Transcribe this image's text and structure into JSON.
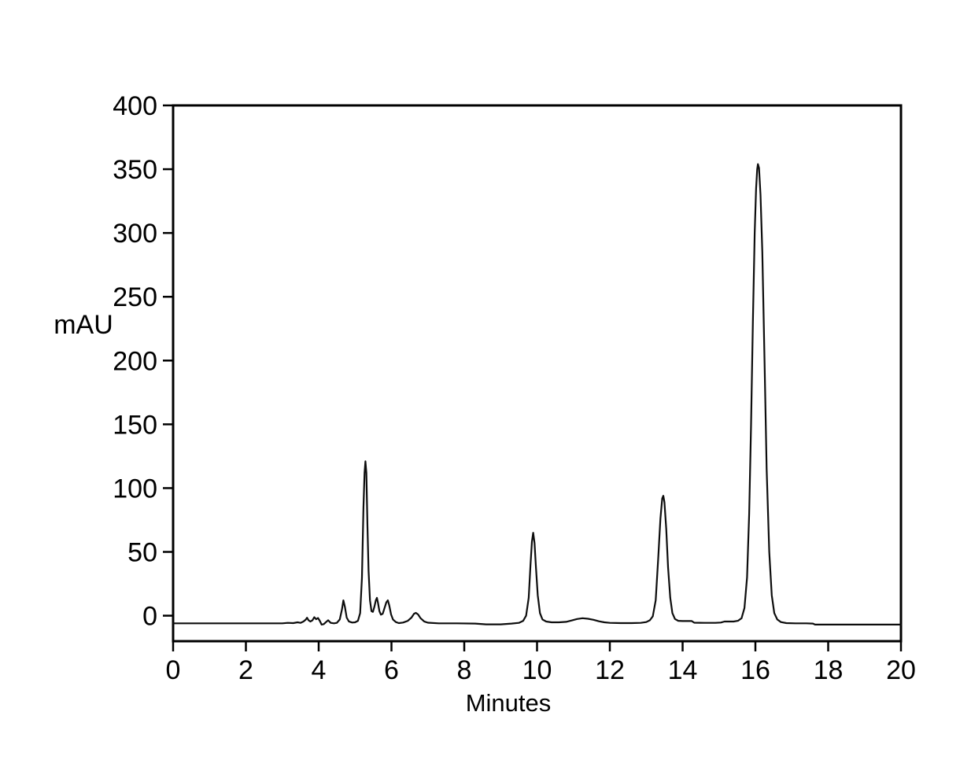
{
  "figure": {
    "background": "#ffffff",
    "axis_color": "#000000",
    "trace_color": "#0d0d0d"
  },
  "chart_data": {
    "type": "line",
    "title": "",
    "xlabel": "Minutes",
    "ylabel": "mAU",
    "xlim": [
      0,
      20
    ],
    "ylim": [
      -20,
      400
    ],
    "x_ticks": [
      0,
      2,
      4,
      6,
      8,
      10,
      12,
      14,
      16,
      18,
      20
    ],
    "y_ticks": [
      0,
      50,
      100,
      150,
      200,
      250,
      300,
      350,
      400
    ],
    "grid": false,
    "legend": "none",
    "peaks": [
      {
        "t": 3.68,
        "mAU": -1.5
      },
      {
        "t": 3.9,
        "mAU": -1.0
      },
      {
        "t": 4.68,
        "mAU": 12
      },
      {
        "t": 5.29,
        "mAU": 121
      },
      {
        "t": 5.6,
        "mAU": 14
      },
      {
        "t": 5.9,
        "mAU": 12
      },
      {
        "t": 6.65,
        "mAU": 2.2
      },
      {
        "t": 9.9,
        "mAU": 65
      },
      {
        "t": 11.3,
        "mAU": -1.5
      },
      {
        "t": 13.47,
        "mAU": 94
      },
      {
        "t": 16.08,
        "mAU": 354
      }
    ],
    "series": [
      {
        "name": "chromatogram-signal",
        "color": "#0d0d0d",
        "points": [
          [
            0,
            -6
          ],
          [
            0.8,
            -6
          ],
          [
            1.6,
            -6
          ],
          [
            2.4,
            -6
          ],
          [
            3.0,
            -6
          ],
          [
            3.15,
            -5.6
          ],
          [
            3.3,
            -5.8
          ],
          [
            3.42,
            -5.2
          ],
          [
            3.5,
            -5.6
          ],
          [
            3.58,
            -4.6
          ],
          [
            3.64,
            -3.2
          ],
          [
            3.68,
            -1.6
          ],
          [
            3.72,
            -3.6
          ],
          [
            3.77,
            -4.6
          ],
          [
            3.83,
            -3.6
          ],
          [
            3.88,
            -1.2
          ],
          [
            3.93,
            -2.8
          ],
          [
            3.98,
            -1.8
          ],
          [
            4.03,
            -4
          ],
          [
            4.08,
            -7
          ],
          [
            4.14,
            -6.6
          ],
          [
            4.2,
            -5
          ],
          [
            4.26,
            -3.6
          ],
          [
            4.33,
            -5.6
          ],
          [
            4.42,
            -6
          ],
          [
            4.5,
            -5.6
          ],
          [
            4.58,
            -3
          ],
          [
            4.64,
            5
          ],
          [
            4.68,
            12
          ],
          [
            4.72,
            7
          ],
          [
            4.77,
            -1.5
          ],
          [
            4.83,
            -4.5
          ],
          [
            4.92,
            -5.4
          ],
          [
            5.0,
            -5.2
          ],
          [
            5.08,
            -4
          ],
          [
            5.14,
            2
          ],
          [
            5.19,
            30
          ],
          [
            5.23,
            85
          ],
          [
            5.26,
            112
          ],
          [
            5.285,
            121
          ],
          [
            5.31,
            112
          ],
          [
            5.34,
            70
          ],
          [
            5.37,
            35
          ],
          [
            5.41,
            12
          ],
          [
            5.45,
            3.5
          ],
          [
            5.49,
            3
          ],
          [
            5.53,
            7
          ],
          [
            5.57,
            12
          ],
          [
            5.6,
            14
          ],
          [
            5.63,
            10
          ],
          [
            5.67,
            3.5
          ],
          [
            5.71,
            0.8
          ],
          [
            5.76,
            1.5
          ],
          [
            5.81,
            6
          ],
          [
            5.86,
            10.5
          ],
          [
            5.9,
            12
          ],
          [
            5.94,
            8
          ],
          [
            5.99,
            1
          ],
          [
            6.04,
            -3
          ],
          [
            6.12,
            -5
          ],
          [
            6.2,
            -5.8
          ],
          [
            6.32,
            -5.4
          ],
          [
            6.45,
            -4
          ],
          [
            6.55,
            -1.5
          ],
          [
            6.62,
            1.5
          ],
          [
            6.67,
            2.2
          ],
          [
            6.73,
            1
          ],
          [
            6.8,
            -2
          ],
          [
            6.9,
            -4.5
          ],
          [
            7.0,
            -5.5
          ],
          [
            7.3,
            -6
          ],
          [
            7.8,
            -6
          ],
          [
            8.3,
            -6.2
          ],
          [
            8.6,
            -6.8
          ],
          [
            9.0,
            -6.8
          ],
          [
            9.3,
            -6.2
          ],
          [
            9.5,
            -5.6
          ],
          [
            9.62,
            -4
          ],
          [
            9.7,
            0
          ],
          [
            9.77,
            14
          ],
          [
            9.82,
            40
          ],
          [
            9.86,
            58
          ],
          [
            9.895,
            65
          ],
          [
            9.93,
            57
          ],
          [
            9.97,
            38
          ],
          [
            10.02,
            16
          ],
          [
            10.08,
            2
          ],
          [
            10.15,
            -3
          ],
          [
            10.25,
            -4.6
          ],
          [
            10.4,
            -5.2
          ],
          [
            10.6,
            -5.2
          ],
          [
            10.8,
            -4.8
          ],
          [
            10.95,
            -3.8
          ],
          [
            11.1,
            -2.6
          ],
          [
            11.25,
            -2
          ],
          [
            11.4,
            -2.4
          ],
          [
            11.55,
            -3.2
          ],
          [
            11.7,
            -4.4
          ],
          [
            11.85,
            -5.2
          ],
          [
            12.0,
            -5.6
          ],
          [
            12.3,
            -5.8
          ],
          [
            12.6,
            -5.8
          ],
          [
            12.85,
            -5.6
          ],
          [
            13.0,
            -5
          ],
          [
            13.1,
            -3.6
          ],
          [
            13.18,
            -0.5
          ],
          [
            13.26,
            12
          ],
          [
            13.33,
            45
          ],
          [
            13.39,
            76
          ],
          [
            13.44,
            92
          ],
          [
            13.47,
            94
          ],
          [
            13.5,
            89
          ],
          [
            13.55,
            68
          ],
          [
            13.6,
            38
          ],
          [
            13.66,
            14
          ],
          [
            13.72,
            2
          ],
          [
            13.79,
            -2.6
          ],
          [
            13.88,
            -4
          ],
          [
            14.0,
            -4.2
          ],
          [
            14.25,
            -4.2
          ],
          [
            14.32,
            -5.5
          ],
          [
            14.6,
            -5.6
          ],
          [
            14.9,
            -5.6
          ],
          [
            15.05,
            -5.4
          ],
          [
            15.15,
            -4.6
          ],
          [
            15.4,
            -4.6
          ],
          [
            15.52,
            -4
          ],
          [
            15.62,
            -2
          ],
          [
            15.7,
            6
          ],
          [
            15.77,
            30
          ],
          [
            15.83,
            80
          ],
          [
            15.88,
            150
          ],
          [
            15.93,
            230
          ],
          [
            15.98,
            300
          ],
          [
            16.02,
            335
          ],
          [
            16.05,
            350
          ],
          [
            16.07,
            354
          ],
          [
            16.1,
            351
          ],
          [
            16.14,
            330
          ],
          [
            16.19,
            285
          ],
          [
            16.25,
            200
          ],
          [
            16.31,
            115
          ],
          [
            16.38,
            50
          ],
          [
            16.45,
            16
          ],
          [
            16.52,
            2
          ],
          [
            16.6,
            -3
          ],
          [
            16.7,
            -5
          ],
          [
            16.85,
            -5.8
          ],
          [
            17.1,
            -6
          ],
          [
            17.4,
            -6
          ],
          [
            17.58,
            -6.2
          ],
          [
            17.64,
            -7
          ],
          [
            18.0,
            -7
          ],
          [
            18.6,
            -7
          ],
          [
            19.2,
            -7
          ],
          [
            20.0,
            -7
          ]
        ]
      }
    ]
  }
}
